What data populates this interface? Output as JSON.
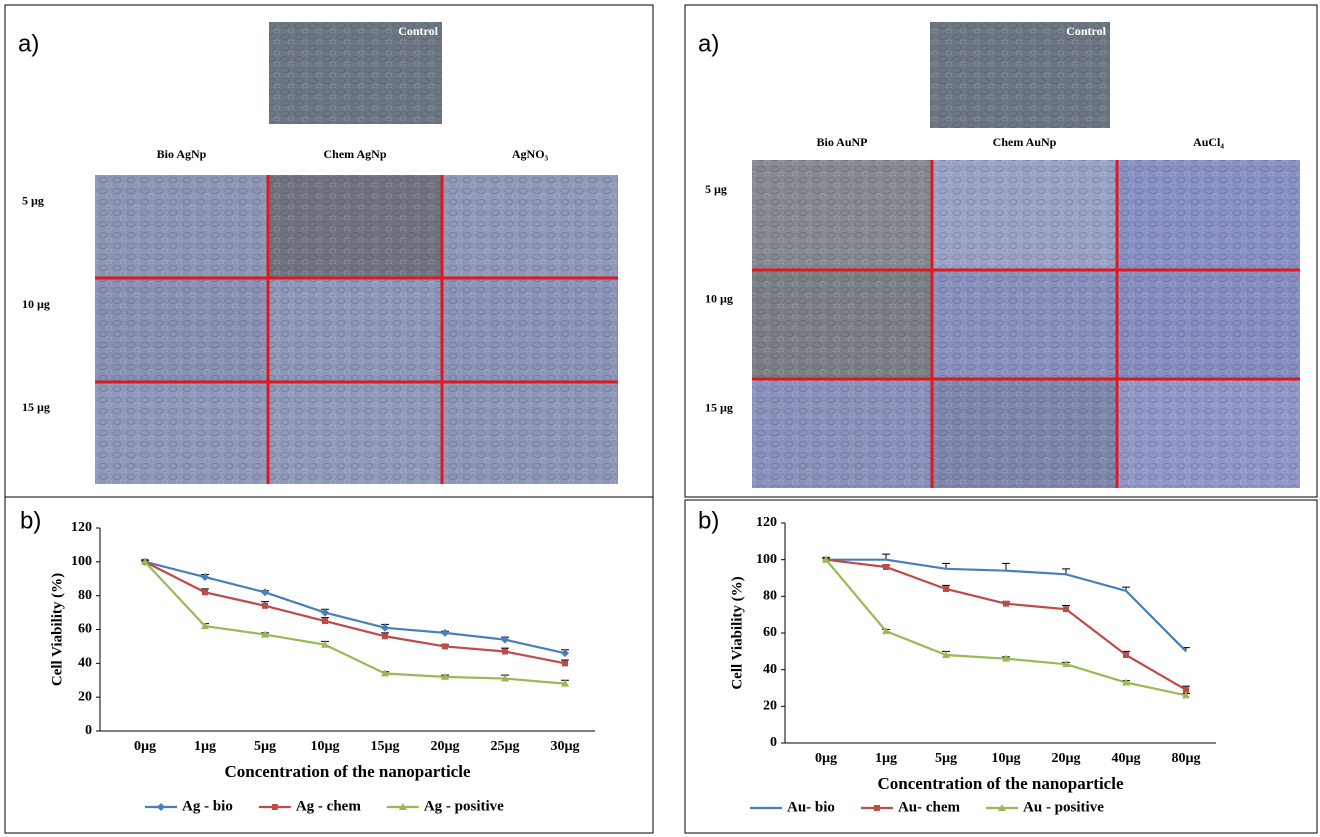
{
  "panels": [
    {
      "label": "a)",
      "control": "Control",
      "columns": [
        "Bio AgNp",
        "Chem AgNp",
        "AgNO₃"
      ],
      "rows": [
        "5 µg",
        "10 µg",
        "15 µg"
      ]
    },
    {
      "label": "a)",
      "control": "Control",
      "columns": [
        "Bio AuNP",
        "Chem AuNp",
        "AuCl₄"
      ],
      "rows": [
        "5 µg",
        "10 µg",
        "15 µg"
      ]
    }
  ],
  "chart_data": [
    {
      "type": "line",
      "panel_label": "b)",
      "x_label": "Concentration of the nanoparticle",
      "y_label": "Cell Viability (%)",
      "categories": [
        "0µg",
        "1µg",
        "5µg",
        "10µg",
        "15µg",
        "20µg",
        "25µg",
        "30µg"
      ],
      "ylim": [
        0,
        120
      ],
      "yticks": [
        0,
        20,
        40,
        60,
        80,
        100,
        120
      ],
      "series": [
        {
          "name": "Ag - bio",
          "color": "#4a7ebb",
          "marker": "diamond",
          "values": [
            100,
            91,
            82,
            70,
            61,
            58,
            54,
            46
          ],
          "errors": [
            1,
            1.5,
            1,
            2,
            2,
            1,
            1.5,
            2
          ]
        },
        {
          "name": "Ag - chem",
          "color": "#be4b48",
          "marker": "square",
          "values": [
            100,
            82,
            74,
            65,
            56,
            50,
            47,
            40
          ],
          "errors": [
            1,
            2,
            2.5,
            2,
            2,
            1,
            2,
            2
          ]
        },
        {
          "name": "Ag - positive",
          "color": "#98b954",
          "marker": "triangle",
          "values": [
            100,
            62,
            57,
            51,
            34,
            32,
            31,
            28
          ],
          "errors": [
            1,
            1.5,
            1,
            2,
            1,
            1,
            2,
            2
          ]
        }
      ]
    },
    {
      "type": "line",
      "panel_label": "b)",
      "x_label": "Concentration of the nanoparticle",
      "y_label": "Cell Viability (%)",
      "categories": [
        "0µg",
        "1µg",
        "5µg",
        "10µg",
        "20µg",
        "40µg",
        "80µg"
      ],
      "ylim": [
        0,
        120
      ],
      "yticks": [
        0,
        20,
        40,
        60,
        80,
        100,
        120
      ],
      "series": [
        {
          "name": "Au- bio",
          "color": "#4a7ebb",
          "marker": "none",
          "values": [
            100,
            100,
            95,
            94,
            92,
            83,
            50
          ],
          "errors": [
            1,
            3,
            3,
            4,
            3,
            2,
            2
          ]
        },
        {
          "name": "Au- chem",
          "color": "#be4b48",
          "marker": "square",
          "values": [
            100,
            96,
            84,
            76,
            73,
            48,
            29
          ],
          "errors": [
            1,
            1,
            2,
            1,
            2,
            2,
            2
          ]
        },
        {
          "name": "Au - positive",
          "color": "#98b954",
          "marker": "triangle",
          "values": [
            100,
            61,
            48,
            46,
            43,
            33,
            26
          ],
          "errors": [
            1,
            1,
            2,
            1,
            1,
            1,
            1
          ]
        }
      ]
    }
  ]
}
